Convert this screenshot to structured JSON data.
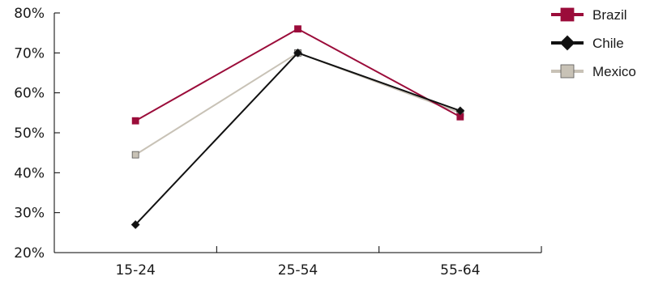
{
  "chart_data": {
    "type": "line",
    "categories": [
      "15-24",
      "25-54",
      "55-64"
    ],
    "series": [
      {
        "name": "Brazil",
        "values": [
          53,
          76,
          54
        ],
        "color": "#9b0c3a",
        "marker": "square"
      },
      {
        "name": "Chile",
        "values": [
          27,
          70,
          55.5
        ],
        "color": "#111111",
        "marker": "diamond"
      },
      {
        "name": "Mexico",
        "values": [
          44.5,
          70,
          55
        ],
        "color": "#c8c2b6",
        "marker": "square"
      }
    ],
    "y_ticks": [
      "20%",
      "30%",
      "40%",
      "50%",
      "60%",
      "70%",
      "80%"
    ],
    "ylim": [
      20,
      80
    ],
    "title": "",
    "xlabel": "",
    "ylabel": "",
    "grid": false,
    "legend_position": "top-right"
  }
}
